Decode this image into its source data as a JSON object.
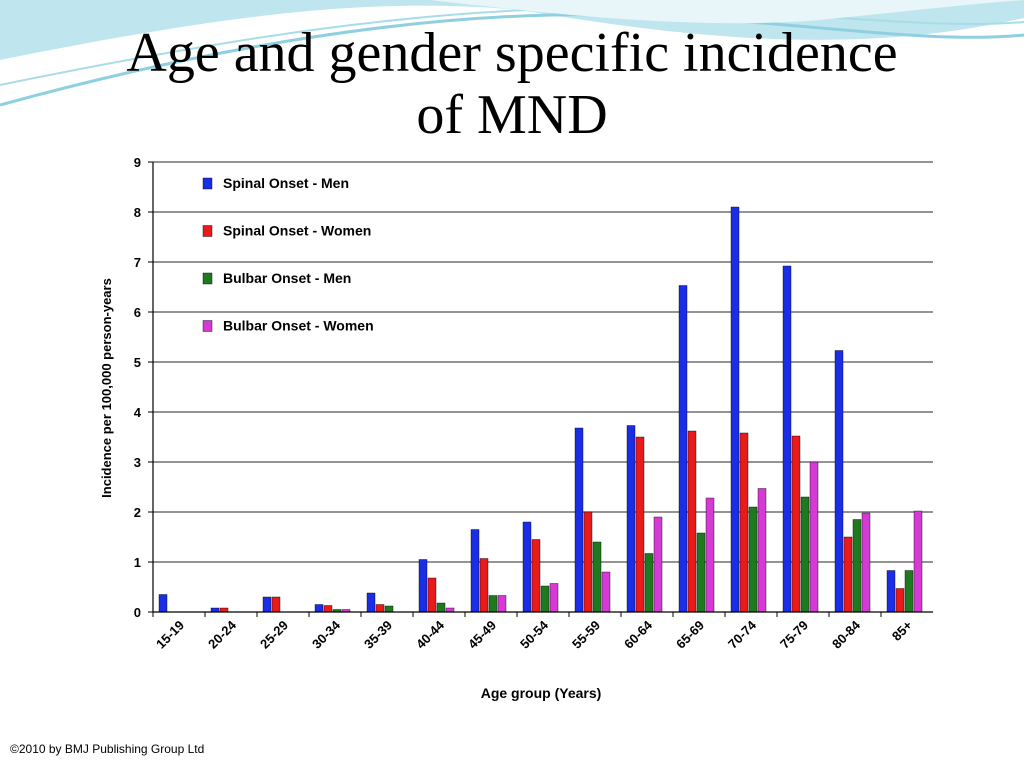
{
  "slide": {
    "title_line1": "Age and gender specific incidence",
    "title_line2": "of MND",
    "copyright": "©2010 by BMJ Publishing Group Ltd"
  },
  "colors": {
    "series": [
      "#1a2ee8",
      "#e81a1a",
      "#1f7a1f",
      "#d53ad5"
    ],
    "grid": "#555555",
    "decor": "#8fd0e0"
  },
  "chart_data": {
    "type": "bar",
    "title": "",
    "xlabel": "Age group (Years)",
    "ylabel": "Incidence per 100,000 person-years",
    "ylim": [
      0,
      9
    ],
    "yticks": [
      0,
      1,
      2,
      3,
      4,
      5,
      6,
      7,
      8,
      9
    ],
    "grid": true,
    "legend_position": "top-left",
    "categories": [
      "15-19",
      "20-24",
      "25-29",
      "30-34",
      "35-39",
      "40-44",
      "45-49",
      "50-54",
      "55-59",
      "60-64",
      "65-69",
      "70-74",
      "75-79",
      "80-84",
      "85+"
    ],
    "series": [
      {
        "name": "Spinal Onset - Men",
        "values": [
          0.35,
          0.08,
          0.3,
          0.15,
          0.38,
          1.05,
          1.65,
          1.8,
          3.68,
          3.73,
          6.53,
          8.1,
          6.92,
          5.23,
          0.83
        ]
      },
      {
        "name": "Spinal Onset - Women",
        "values": [
          0,
          0.08,
          0.3,
          0.13,
          0.15,
          0.68,
          1.07,
          1.45,
          2.0,
          3.5,
          3.62,
          3.58,
          3.52,
          1.5,
          0.47
        ]
      },
      {
        "name": "Bulbar Onset - Men",
        "values": [
          0,
          0,
          0,
          0.05,
          0.12,
          0.18,
          0.33,
          0.52,
          1.4,
          1.17,
          1.58,
          2.1,
          2.3,
          1.85,
          0.83
        ]
      },
      {
        "name": "Bulbar Onset - Women",
        "values": [
          0,
          0,
          0,
          0.05,
          0,
          0.08,
          0.33,
          0.57,
          0.8,
          1.9,
          2.28,
          2.47,
          3.0,
          1.98,
          2.02
        ]
      }
    ]
  }
}
